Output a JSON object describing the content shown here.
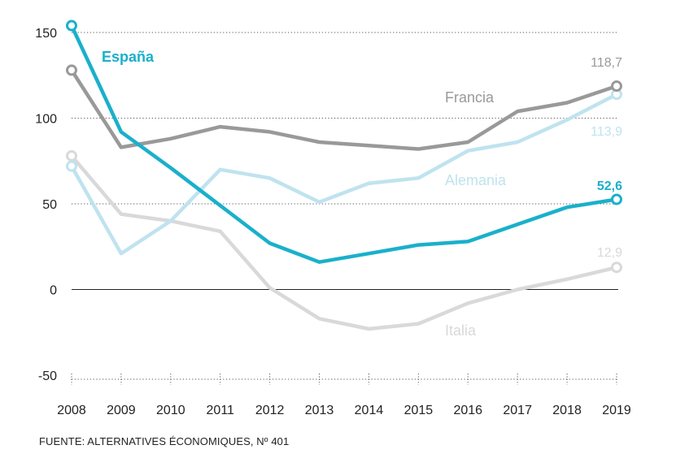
{
  "chart_data": {
    "type": "line",
    "title": "",
    "xlabel": "",
    "ylabel": "",
    "x": [
      "2008",
      "2009",
      "2010",
      "2011",
      "2012",
      "2013",
      "2014",
      "2015",
      "2016",
      "2017",
      "2018",
      "2019"
    ],
    "ylim": [
      -50,
      155
    ],
    "yticks": [
      150,
      100,
      50,
      0,
      -50
    ],
    "ytick_labels": [
      "150",
      "100",
      "50",
      "0",
      "-50"
    ],
    "grid": "horizontal dotted, solid zero line",
    "legend": "inline labels next to series",
    "series": [
      {
        "name": "Italia",
        "color": "#d9d9d9",
        "values": [
          78,
          44,
          40,
          34,
          1,
          -17,
          -23,
          -20,
          -8,
          0,
          6,
          12.9
        ],
        "end_label": "12,9"
      },
      {
        "name": "Alemania",
        "color": "#bfe3ef",
        "values": [
          72,
          21,
          40,
          70,
          65,
          51,
          62,
          65,
          81,
          86,
          99,
          113.9
        ],
        "end_label": "113,9"
      },
      {
        "name": "Francia",
        "color": "#999999",
        "values": [
          128,
          83,
          88,
          95,
          92,
          86,
          84,
          82,
          86,
          104,
          109,
          118.7
        ],
        "end_label": "118,7"
      },
      {
        "name": "España",
        "color": "#1ab0cb",
        "values": [
          154,
          92,
          71,
          49,
          27,
          16,
          21,
          26,
          28,
          38,
          48,
          52.6
        ],
        "end_label": "52,6"
      }
    ]
  },
  "source": "FUENTE: ALTERNATIVES ÉCONOMIQUES, Nº 401"
}
